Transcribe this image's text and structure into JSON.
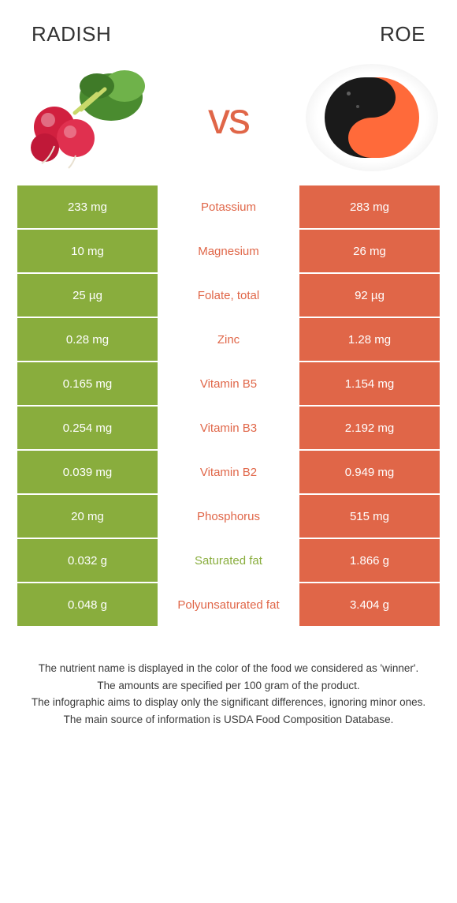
{
  "colors": {
    "left": "#89ad3d",
    "right": "#e06648",
    "mid_bg": "#ffffff"
  },
  "header": {
    "left_title": "RADISH",
    "right_title": "ROE",
    "vs": "vs"
  },
  "rows": [
    {
      "nutrient": "Potassium",
      "left": "233 mg",
      "right": "283 mg",
      "winner": "right"
    },
    {
      "nutrient": "Magnesium",
      "left": "10 mg",
      "right": "26 mg",
      "winner": "right"
    },
    {
      "nutrient": "Folate, total",
      "left": "25 µg",
      "right": "92 µg",
      "winner": "right"
    },
    {
      "nutrient": "Zinc",
      "left": "0.28 mg",
      "right": "1.28 mg",
      "winner": "right"
    },
    {
      "nutrient": "Vitamin B5",
      "left": "0.165 mg",
      "right": "1.154 mg",
      "winner": "right"
    },
    {
      "nutrient": "Vitamin B3",
      "left": "0.254 mg",
      "right": "2.192 mg",
      "winner": "right"
    },
    {
      "nutrient": "Vitamin B2",
      "left": "0.039 mg",
      "right": "0.949 mg",
      "winner": "right"
    },
    {
      "nutrient": "Phosphorus",
      "left": "20 mg",
      "right": "515 mg",
      "winner": "right"
    },
    {
      "nutrient": "Saturated fat",
      "left": "0.032 g",
      "right": "1.866 g",
      "winner": "left"
    },
    {
      "nutrient": "Polyunsaturated fat",
      "left": "0.048 g",
      "right": "3.404 g",
      "winner": "right"
    }
  ],
  "footer": {
    "line1": "The nutrient name is displayed in the color of the food we considered as 'winner'.",
    "line2": "The amounts are specified per 100 gram of the product.",
    "line3": "The infographic aims to display only the significant differences, ignoring minor ones.",
    "line4": "The main source of information is USDA Food Composition Database."
  }
}
